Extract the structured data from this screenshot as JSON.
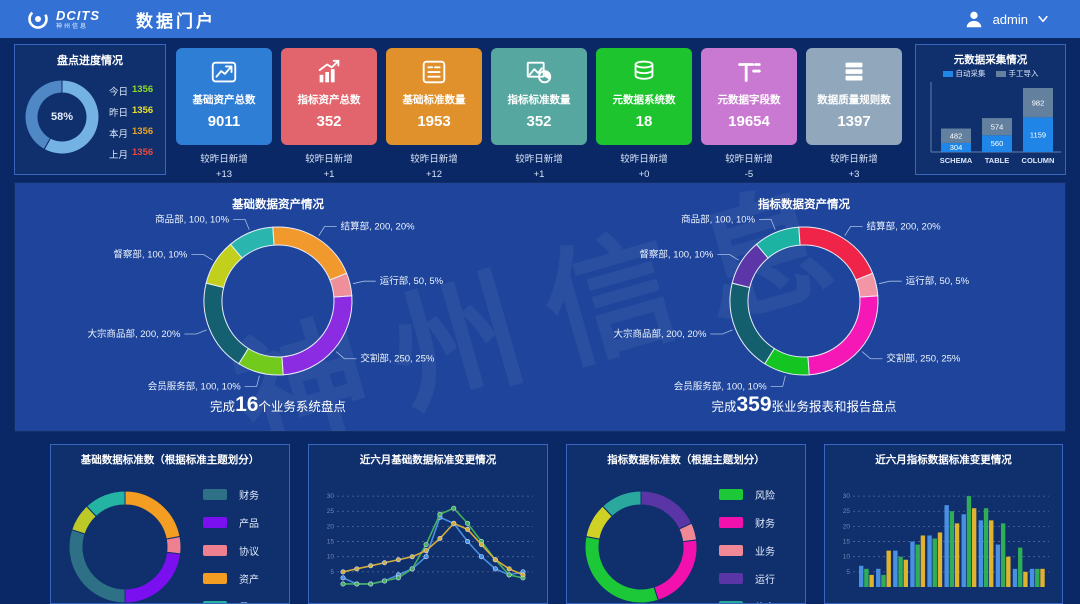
{
  "header": {
    "brand": "DCITS",
    "brand_subtitle": "神州信息",
    "app_title": "数据门户",
    "username": "admin"
  },
  "inventory_panel": {
    "title": "盘点进度情况",
    "center_percent": "58%",
    "donut": {
      "colors": [
        "#74b2e4",
        "#4f88c5"
      ],
      "values": [
        58,
        42
      ]
    },
    "stats": [
      {
        "label": "今日",
        "value": "1356",
        "color": "#8ddc24"
      },
      {
        "label": "昨日",
        "value": "1356",
        "color": "#e8e027"
      },
      {
        "label": "本月",
        "value": "1356",
        "color": "#e8a427"
      },
      {
        "label": "上月",
        "value": "1356",
        "color": "#e84a3c"
      }
    ]
  },
  "kpi_cards": [
    {
      "icon": "trend-line-icon",
      "label": "基础资产总数",
      "value": "9011",
      "color": "#2e7ed6",
      "delta_label": "较昨日新增",
      "delta": "+13"
    },
    {
      "icon": "bar-growth-icon",
      "label": "指标资产总数",
      "value": "352",
      "color": "#e2646c",
      "delta_label": "较昨日新增",
      "delta": "+1"
    },
    {
      "icon": "list-icon",
      "label": "基础标准数量",
      "value": "1953",
      "color": "#e0912c",
      "delta_label": "较昨日新增",
      "delta": "+12"
    },
    {
      "icon": "image-pie-icon",
      "label": "指标标准数量",
      "value": "352",
      "color": "#56a7a0",
      "delta_label": "较昨日新增",
      "delta": "+1"
    },
    {
      "icon": "database-icon",
      "label": "元数据系统数",
      "value": "18",
      "color": "#1ec42d",
      "delta_label": "较昨日新增",
      "delta": "+0"
    },
    {
      "icon": "field-icon",
      "label": "元数据字段数",
      "value": "19654",
      "color": "#ca79d2",
      "delta_label": "较昨日新增",
      "delta": "-5"
    },
    {
      "icon": "server-stack-icon",
      "label": "数据质量规则数",
      "value": "1397",
      "color": "#91a7bc",
      "delta_label": "较昨日新增",
      "delta": "+3"
    }
  ],
  "metadata_panel": {
    "title": "元数据采集情况",
    "legend": [
      {
        "label": "自动采集",
        "color": "#1f86e8"
      },
      {
        "label": "手工导入",
        "color": "#64809f"
      }
    ],
    "categories": [
      "SCHEMA",
      "TABLE",
      "COLUMN"
    ],
    "auto_values": [
      304,
      560,
      1159
    ],
    "manual_values": [
      482,
      574,
      982
    ]
  },
  "asset_section": {
    "watermark": "神州信息",
    "charts": [
      {
        "title": "基础数据资产情况",
        "caption": {
          "prefix": "完成",
          "number": "16",
          "suffix": "个业务系统盘点"
        },
        "segments": [
          {
            "label": "商品部",
            "value": 100,
            "percent": "10%",
            "color": "#2ab6ae"
          },
          {
            "label": "结算部",
            "value": 200,
            "percent": "20%",
            "color": "#f2992e"
          },
          {
            "label": "运行部",
            "value": 50,
            "percent": "5%",
            "color": "#ef8f99"
          },
          {
            "label": "交割部",
            "value": 250,
            "percent": "25%",
            "color": "#8b2be2"
          },
          {
            "label": "会员服务部",
            "value": 100,
            "percent": "10%",
            "color": "#72ca1d"
          },
          {
            "label": "大宗商品部",
            "value": 200,
            "percent": "20%",
            "color": "#145f70"
          },
          {
            "label": "督察部",
            "value": 100,
            "percent": "10%",
            "color": "#c2cf1c"
          }
        ]
      },
      {
        "title": "指标数据资产情况",
        "caption": {
          "prefix": "完成",
          "number": "359",
          "suffix": "张业务报表和报告盘点"
        },
        "segments": [
          {
            "label": "商品部",
            "value": 100,
            "percent": "10%",
            "color": "#1cb3a2"
          },
          {
            "label": "结算部",
            "value": 200,
            "percent": "20%",
            "color": "#ef2448"
          },
          {
            "label": "运行部",
            "value": 50,
            "percent": "5%",
            "color": "#f295a4"
          },
          {
            "label": "交割部",
            "value": 250,
            "percent": "25%",
            "color": "#f517b6"
          },
          {
            "label": "会员服务部",
            "value": 100,
            "percent": "10%",
            "color": "#14c522"
          },
          {
            "label": "大宗商品部",
            "value": 200,
            "percent": "20%",
            "color": "#135f6e"
          },
          {
            "label": "督察部",
            "value": 100,
            "percent": "10%",
            "color": "#5c35a8"
          }
        ]
      }
    ]
  },
  "bottom_section": {
    "basic_std_panel": {
      "title": "基础数据标准数（根据标准主题划分）",
      "legend": [
        {
          "label": "财务",
          "color": "#2e7186"
        },
        {
          "label": "产品",
          "color": "#7a10f0"
        },
        {
          "label": "协议",
          "color": "#ef8090"
        },
        {
          "label": "资产",
          "color": "#f49d23"
        },
        {
          "label": "员工",
          "color": "#25b3a3"
        }
      ],
      "segments": [
        {
          "color": "#f49d23",
          "value": 22
        },
        {
          "color": "#ef8090",
          "value": 5
        },
        {
          "color": "#7a10f0",
          "value": 23
        },
        {
          "color": "#2e7186",
          "value": 30
        },
        {
          "color": "#bcc928",
          "value": 8
        },
        {
          "color": "#25b3a3",
          "value": 12
        }
      ]
    },
    "basic_change_panel": {
      "title": "近六月基础数据标准变更情况",
      "type": "line",
      "yticks": [
        5,
        10,
        15,
        20,
        25,
        30
      ],
      "ymax": 33,
      "series": [
        {
          "color": "#4a90e2",
          "values": [
            3,
            1,
            1,
            2,
            4,
            6,
            10,
            23,
            21,
            15,
            10,
            6,
            4,
            5
          ]
        },
        {
          "color": "#43b05c",
          "values": [
            1,
            1,
            1,
            2,
            3,
            6,
            14,
            24,
            26,
            21,
            15,
            9,
            4,
            3
          ]
        },
        {
          "color": "#d4ac3a",
          "values": [
            5,
            6,
            7,
            8,
            9,
            10,
            12,
            16,
            21,
            19,
            14,
            9,
            6,
            4
          ]
        }
      ]
    },
    "indicator_std_panel": {
      "title": "指标数据标准数（根据主题划分）",
      "legend": [
        {
          "label": "风险",
          "color": "#1cc838"
        },
        {
          "label": "财务",
          "color": "#f311ae"
        },
        {
          "label": "业务",
          "color": "#f08896"
        },
        {
          "label": "运行",
          "color": "#5a35a5"
        },
        {
          "label": "信息",
          "color": "#2aa89e"
        }
      ],
      "segments": [
        {
          "color": "#5a35a5",
          "value": 18
        },
        {
          "color": "#f08896",
          "value": 5
        },
        {
          "color": "#f311ae",
          "value": 22
        },
        {
          "color": "#1cc838",
          "value": 33
        },
        {
          "color": "#cfd225",
          "value": 10
        },
        {
          "color": "#2aa89e",
          "value": 12
        }
      ]
    },
    "indicator_change_panel": {
      "title": "近六月指标数据标准变更情况",
      "type": "bar",
      "yticks": [
        5,
        10,
        15,
        20,
        25,
        30
      ],
      "ymax": 33,
      "series": [
        {
          "color": "#4a90e2",
          "values": [
            7,
            6,
            12,
            15,
            17,
            27,
            24,
            22,
            14,
            6,
            6
          ]
        },
        {
          "color": "#2fae57",
          "values": [
            6,
            4,
            10,
            14,
            16,
            25,
            30,
            26,
            21,
            13,
            6
          ]
        },
        {
          "color": "#e0b32f",
          "values": [
            4,
            12,
            9,
            17,
            18,
            21,
            26,
            22,
            10,
            5,
            6
          ]
        }
      ]
    }
  }
}
